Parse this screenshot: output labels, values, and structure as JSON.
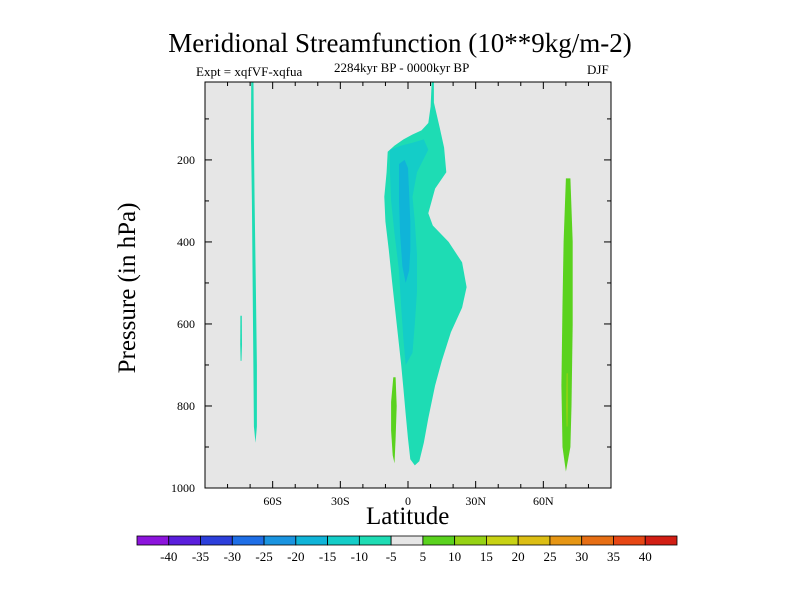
{
  "chart_data": {
    "type": "contour",
    "title": "Meridional Streamfunction (10**9kg/m-2)",
    "subtitle": "2284kyr BP - 0000kyr BP",
    "left_label": "Expt = xqfVF-xqfua",
    "right_label": "DJF",
    "xlabel": "Latitude",
    "ylabel": "Pressure (in hPa)",
    "xlim": [
      -90,
      90
    ],
    "ylim": [
      1000,
      10
    ],
    "x_ticks": [
      {
        "value": -60,
        "label": "60S"
      },
      {
        "value": -30,
        "label": "30S"
      },
      {
        "value": 0,
        "label": "0"
      },
      {
        "value": 30,
        "label": "30N"
      },
      {
        "value": 60,
        "label": "60N"
      }
    ],
    "y_ticks": [
      {
        "value": 200,
        "label": "200"
      },
      {
        "value": 400,
        "label": "400"
      },
      {
        "value": 600,
        "label": "600"
      },
      {
        "value": 800,
        "label": "800"
      },
      {
        "value": 1000,
        "label": "1000"
      }
    ],
    "contour_levels": [
      -40,
      -35,
      -30,
      -25,
      -20,
      -15,
      -10,
      -5,
      5,
      10,
      15,
      20,
      25,
      30,
      35,
      40
    ],
    "level_labels": [
      "-40",
      "-35",
      "-30",
      "-25",
      "-20",
      "-15",
      "-10",
      "-5",
      "5",
      "10",
      "15",
      "20",
      "25",
      "30",
      "35",
      "40"
    ],
    "colors": [
      "#8c14dc",
      "#5a1edc",
      "#2c3fdb",
      "#1e6ee6",
      "#1a94e0",
      "#10b4d8",
      "#14cdc8",
      "#1edcb4",
      "#e6e6e6",
      "#5ad21e",
      "#96d214",
      "#c8d214",
      "#dcbe14",
      "#e69614",
      "#e66e14",
      "#e64614",
      "#d21e14"
    ],
    "background_color": "#e6e6e6",
    "regions": [
      {
        "name": "sh-polar-column",
        "level": -5,
        "points": [
          [
            -69.5,
            10
          ],
          [
            -68.5,
            10
          ],
          [
            -68.3,
            150
          ],
          [
            -68.0,
            300
          ],
          [
            -67.5,
            500
          ],
          [
            -67.0,
            700
          ],
          [
            -67.0,
            850
          ],
          [
            -67.6,
            890
          ],
          [
            -68.3,
            850
          ],
          [
            -68.7,
            600
          ],
          [
            -69.2,
            300
          ],
          [
            -69.6,
            150
          ]
        ]
      },
      {
        "name": "sh-polar-blip",
        "level": -5,
        "points": [
          [
            -74.3,
            580
          ],
          [
            -73.7,
            580
          ],
          [
            -73.6,
            650
          ],
          [
            -73.8,
            690
          ],
          [
            -74.2,
            690
          ],
          [
            -74.4,
            650
          ]
        ]
      },
      {
        "name": "tropical-cell-outer",
        "level": -5,
        "points": [
          [
            10.5,
            10
          ],
          [
            11.5,
            10
          ],
          [
            11.5,
            60
          ],
          [
            14,
            120
          ],
          [
            16,
            170
          ],
          [
            17,
            230
          ],
          [
            12,
            270
          ],
          [
            9,
            330
          ],
          [
            11,
            360
          ],
          [
            18,
            400
          ],
          [
            24,
            450
          ],
          [
            26,
            510
          ],
          [
            24,
            560
          ],
          [
            19,
            620
          ],
          [
            15,
            690
          ],
          [
            12,
            750
          ],
          [
            9,
            830
          ],
          [
            7,
            890
          ],
          [
            5,
            935
          ],
          [
            3,
            945
          ],
          [
            1,
            930
          ],
          [
            0,
            880
          ],
          [
            -1,
            820
          ],
          [
            -2,
            760
          ],
          [
            -3,
            700
          ],
          [
            -5,
            600
          ],
          [
            -7,
            500
          ],
          [
            -8.5,
            420
          ],
          [
            -10,
            350
          ],
          [
            -10.5,
            290
          ],
          [
            -9.5,
            230
          ],
          [
            -9,
            180
          ],
          [
            -6,
            165
          ],
          [
            -2,
            150
          ],
          [
            2,
            138
          ],
          [
            6,
            128
          ],
          [
            9,
            110
          ],
          [
            10,
            70
          ]
        ]
      },
      {
        "name": "tropical-cell-mid",
        "level": -10,
        "points": [
          [
            -8,
            175
          ],
          [
            -3,
            165
          ],
          [
            2,
            158
          ],
          [
            7,
            150
          ],
          [
            9,
            175
          ],
          [
            4,
            230
          ],
          [
            2,
            290
          ],
          [
            3,
            350
          ],
          [
            4,
            430
          ],
          [
            4,
            520
          ],
          [
            3,
            600
          ],
          [
            2,
            670
          ],
          [
            -1,
            700
          ],
          [
            -2,
            640
          ],
          [
            -3,
            560
          ],
          [
            -4,
            470
          ],
          [
            -6,
            380
          ],
          [
            -7.5,
            300
          ],
          [
            -8,
            230
          ]
        ]
      },
      {
        "name": "tropical-cell-core",
        "level": -15,
        "points": [
          [
            -4,
            210
          ],
          [
            -1.5,
            200
          ],
          [
            0,
            220
          ],
          [
            0.5,
            280
          ],
          [
            1,
            350
          ],
          [
            1,
            420
          ],
          [
            0.5,
            470
          ],
          [
            -1,
            500
          ],
          [
            -2.5,
            460
          ],
          [
            -3.5,
            380
          ],
          [
            -4,
            300
          ]
        ]
      },
      {
        "name": "tropical-positive",
        "level": 5,
        "points": [
          [
            -6.5,
            730
          ],
          [
            -5.5,
            730
          ],
          [
            -5,
            800
          ],
          [
            -5.5,
            880
          ],
          [
            -6,
            940
          ],
          [
            -6.8,
            920
          ],
          [
            -7.5,
            860
          ],
          [
            -7.5,
            790
          ]
        ]
      },
      {
        "name": "nh-polar-cell",
        "level": 5,
        "points": [
          [
            70,
            245
          ],
          [
            72,
            245
          ],
          [
            73,
            400
          ],
          [
            73,
            600
          ],
          [
            72.5,
            800
          ],
          [
            72,
            900
          ],
          [
            70,
            960
          ],
          [
            68.5,
            900
          ],
          [
            68,
            750
          ],
          [
            68.5,
            550
          ],
          [
            69,
            400
          ]
        ]
      },
      {
        "name": "nh-polar-core",
        "level": 10,
        "points": [
          [
            70.3,
            720
          ],
          [
            70.8,
            720
          ],
          [
            70.9,
            800
          ],
          [
            70.7,
            850
          ],
          [
            70.3,
            850
          ],
          [
            70.1,
            800
          ]
        ]
      }
    ]
  }
}
